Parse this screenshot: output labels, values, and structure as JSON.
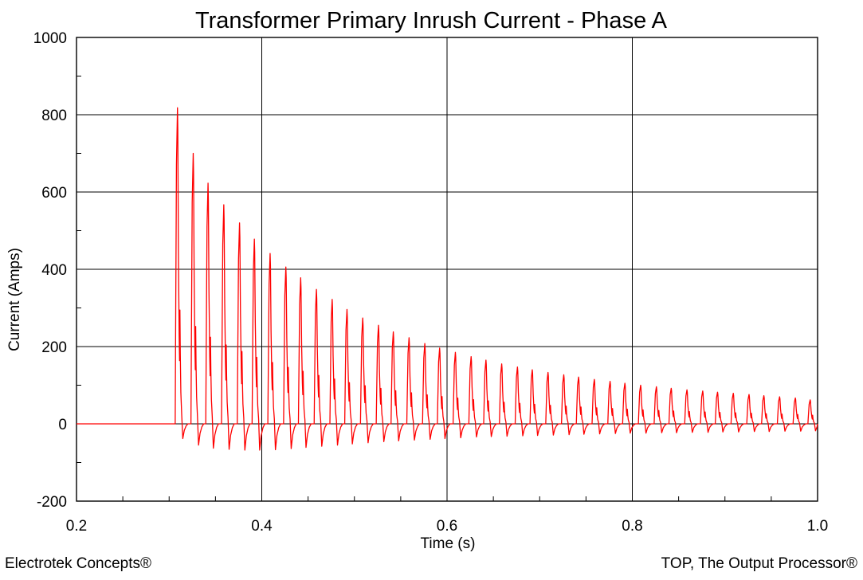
{
  "chart_data": {
    "type": "line",
    "title": "Transformer Primary Inrush Current - Phase A",
    "xlabel": "Time (s)",
    "ylabel": "Current (Amps)",
    "xlim": [
      0.2,
      1.0
    ],
    "ylim": [
      -200,
      1000
    ],
    "x_major_ticks": [
      0.2,
      0.4,
      0.6,
      0.8,
      1.0
    ],
    "x_tick_labels": [
      "0.2",
      "0.4",
      "0.6",
      "0.8",
      "1.0"
    ],
    "x_minor_step": 0.05,
    "y_major_ticks": [
      -200,
      0,
      200,
      400,
      600,
      800,
      1000
    ],
    "y_tick_labels": [
      "-200",
      "0",
      "200",
      "400",
      "600",
      "800",
      "1000"
    ],
    "y_minor_step": 100,
    "grid": true,
    "series": [
      {
        "color": "#ff0000",
        "pre_energization": {
          "x": [
            0.2,
            0.3
          ],
          "y": [
            0,
            0
          ]
        },
        "energization_time": 0.3,
        "cycle_period": 0.016667,
        "pulse_width_fraction": 0.42,
        "cycles": {
          "peak_time": [
            0.309,
            0.326,
            0.342,
            0.359,
            0.376,
            0.392,
            0.409,
            0.426,
            0.442,
            0.459,
            0.476,
            0.492,
            0.509,
            0.526,
            0.542,
            0.559,
            0.576,
            0.592,
            0.609,
            0.626,
            0.642,
            0.659,
            0.676,
            0.692,
            0.709,
            0.726,
            0.742,
            0.759,
            0.776,
            0.792,
            0.809,
            0.826,
            0.842,
            0.859,
            0.876,
            0.892,
            0.909,
            0.926,
            0.942,
            0.959,
            0.976,
            0.992
          ],
          "peak_current": [
            818,
            700,
            623,
            567,
            520,
            478,
            441,
            406,
            378,
            348,
            322,
            296,
            274,
            255,
            238,
            223,
            208,
            196,
            185,
            174,
            165,
            155,
            147,
            140,
            133,
            127,
            121,
            115,
            110,
            105,
            100,
            96,
            92,
            88,
            85,
            82,
            79,
            76,
            73,
            70,
            67,
            62
          ],
          "trough_current": [
            -38,
            -55,
            -63,
            -66,
            -68,
            -68,
            -67,
            -64,
            -61,
            -58,
            -55,
            -52,
            -49,
            -46,
            -44,
            -42,
            -40,
            -38,
            -36,
            -34,
            -33,
            -32,
            -31,
            -30,
            -29,
            -28,
            -27,
            -26,
            -25,
            -24,
            -24,
            -23,
            -23,
            -22,
            -22,
            -21,
            -21,
            -20,
            -20,
            -19,
            -19,
            -18
          ]
        }
      }
    ]
  },
  "footer": {
    "left": "Electrotek Concepts®",
    "right": "TOP, The Output Processor®"
  }
}
